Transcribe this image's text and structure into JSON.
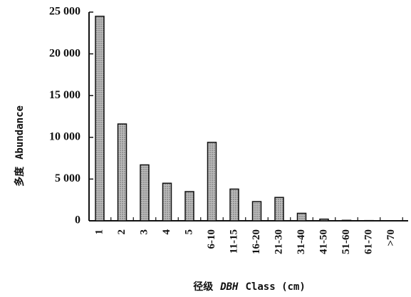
{
  "chart_data": {
    "type": "bar",
    "categories": [
      "1",
      "2",
      "3",
      "4",
      "5",
      "6-10",
      "11-15",
      "16-20",
      "21-30",
      "31-40",
      "41-50",
      "51-60",
      "61-70",
      ">70"
    ],
    "values": [
      24500,
      11600,
      6700,
      4500,
      3500,
      9400,
      3800,
      2300,
      2800,
      900,
      200,
      60,
      30,
      0
    ],
    "yticks": [
      0,
      5000,
      10000,
      15000,
      20000,
      25000
    ],
    "ytick_labels": [
      "0",
      "5 000",
      "10 000",
      "15 000",
      "20 000",
      "25 000"
    ],
    "ylim": [
      0,
      25000
    ],
    "ylabel_cn": "多度",
    "ylabel_en": "Abundance",
    "xlabel_cn": "径级",
    "xlabel_italic": "DBH",
    "xlabel_en": "Class (cm)",
    "grid": false,
    "bar_fill": "#bdbdbd",
    "bar_stroke": "#111111"
  }
}
